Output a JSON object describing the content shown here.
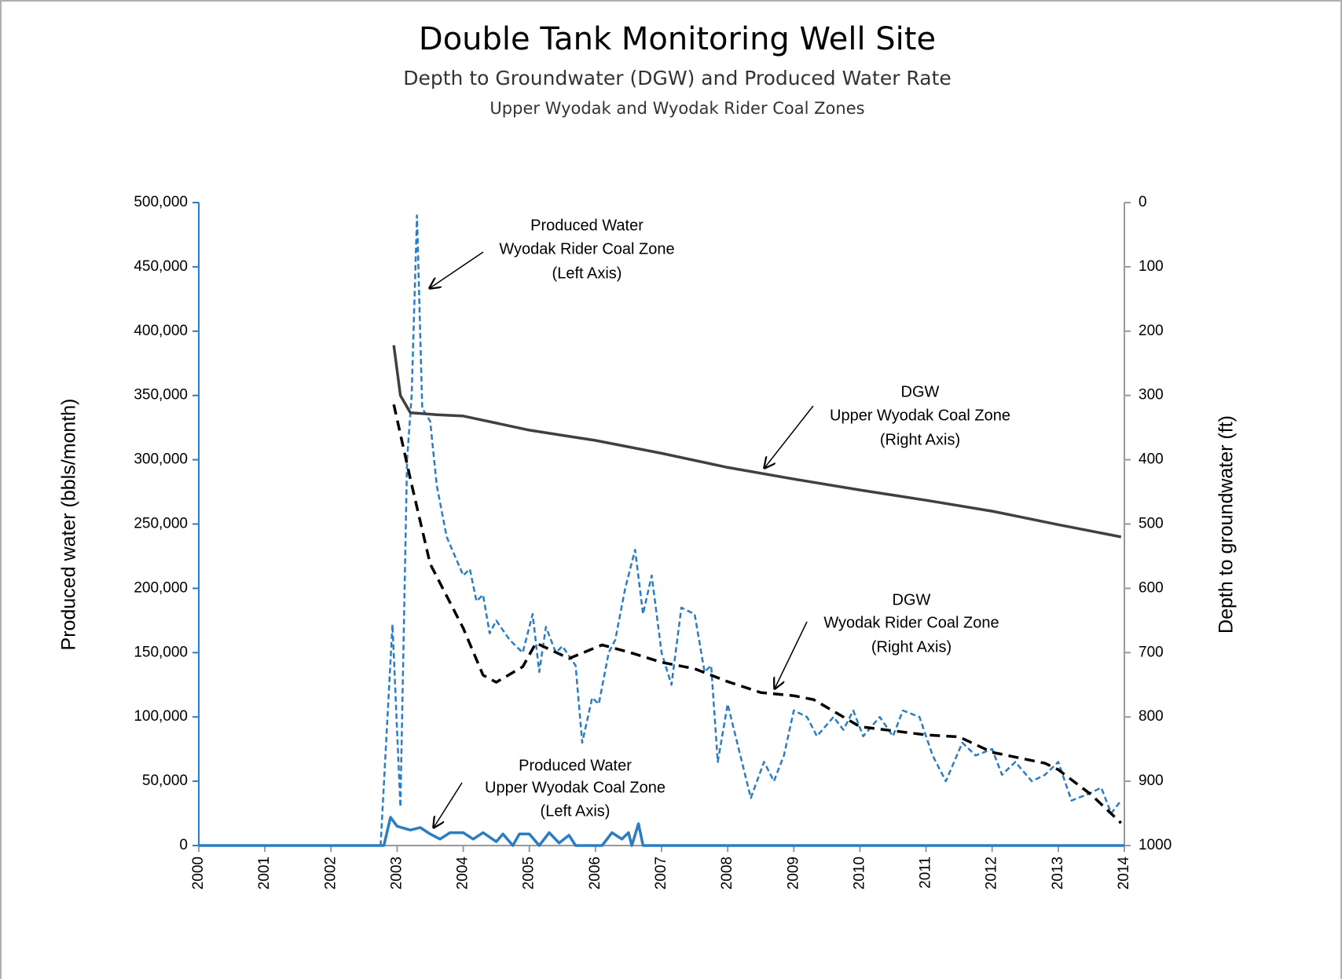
{
  "chart_data": {
    "type": "line",
    "title": "Double Tank Monitoring Well Site",
    "subtitle": [
      "Depth to Groundwater (DGW) and Produced Water Rate",
      "Upper Wyodak and Wyodak Rider Coal Zones"
    ],
    "y_label": "Produced water (bbls/month)",
    "y2_label": "Depth to groundwater (ft)",
    "xlim": [
      2000,
      2014
    ],
    "xticks": [
      2000,
      2001,
      2002,
      2003,
      2004,
      2005,
      2006,
      2007,
      2008,
      2009,
      2010,
      2011,
      2012,
      2013,
      2014
    ],
    "ylim": [
      0,
      500000
    ],
    "yticks": [
      0,
      {
        "value": 50000,
        "label": "50,000"
      },
      {
        "value": 100000,
        "label": "100,000"
      },
      {
        "value": 150000,
        "label": "150,000"
      },
      {
        "value": 200000,
        "label": "200,000"
      },
      {
        "value": 250000,
        "label": "250,000"
      },
      {
        "value": 300000,
        "label": "300,000"
      },
      {
        "value": 350000,
        "label": "350,000"
      },
      {
        "value": 400000,
        "label": "400,000"
      },
      {
        "value": 450000,
        "label": "450,000"
      },
      {
        "value": 500000,
        "label": "500,000"
      }
    ],
    "y2lim": [
      1000,
      0
    ],
    "y2ticks": [
      0,
      100,
      200,
      300,
      400,
      500,
      600,
      700,
      800,
      900,
      1000
    ],
    "series": [
      {
        "label": [
          "Produced Water",
          "Wyodak Rider Coal Zone",
          "(Left Axis)"
        ],
        "color": "#2a7dc4",
        "dash": true,
        "axis": "y",
        "x": [
          2000,
          2002.75,
          2002.93,
          2003.05,
          2003.15,
          2003.22,
          2003.3,
          2003.38,
          2003.5,
          2003.6,
          2003.75,
          2004.0,
          2004.1,
          2004.2,
          2004.3,
          2004.4,
          2004.5,
          2004.7,
          2004.9,
          2005.05,
          2005.15,
          2005.25,
          2005.4,
          2005.5,
          2005.7,
          2005.8,
          2005.95,
          2006.05,
          2006.2,
          2006.3,
          2006.45,
          2006.6,
          2006.72,
          2006.85,
          2007.0,
          2007.15,
          2007.3,
          2007.5,
          2007.65,
          2007.75,
          2007.85,
          2008.0,
          2008.35,
          2008.55,
          2008.7,
          2008.85,
          2009.0,
          2009.2,
          2009.35,
          2009.6,
          2009.75,
          2009.9,
          2010.05,
          2010.3,
          2010.5,
          2010.65,
          2010.9,
          2011.1,
          2011.3,
          2011.55,
          2011.75,
          2012.0,
          2012.15,
          2012.35,
          2012.6,
          2012.8,
          2013.0,
          2013.2,
          2013.45,
          2013.65,
          2013.8,
          2013.95
        ],
        "values": [
          0,
          0,
          172000,
          30000,
          300000,
          350000,
          490000,
          340000,
          330000,
          280000,
          240000,
          210000,
          215000,
          190000,
          195000,
          165000,
          175000,
          160000,
          150000,
          180000,
          135000,
          170000,
          150000,
          155000,
          140000,
          80000,
          115000,
          110000,
          150000,
          160000,
          200000,
          230000,
          180000,
          210000,
          150000,
          125000,
          185000,
          180000,
          135000,
          140000,
          65000,
          110000,
          37000,
          65000,
          50000,
          70000,
          105000,
          100000,
          85000,
          100000,
          90000,
          105000,
          85000,
          100000,
          85000,
          105000,
          100000,
          70000,
          50000,
          80000,
          70000,
          75000,
          55000,
          65000,
          50000,
          55000,
          65000,
          35000,
          40000,
          45000,
          25000,
          35000
        ]
      },
      {
        "label": [
          "Produced Water",
          "Upper Wyodak Coal Zone",
          "(Left Axis)"
        ],
        "color": "#2a7dc4",
        "dash": false,
        "axis": "y",
        "x": [
          2000,
          2002.8,
          2002.9,
          2003.0,
          2003.2,
          2003.35,
          2003.5,
          2003.65,
          2003.8,
          2004.0,
          2004.15,
          2004.3,
          2004.5,
          2004.6,
          2004.75,
          2004.85,
          2005.0,
          2005.15,
          2005.3,
          2005.45,
          2005.6,
          2005.7,
          2006.1,
          2006.25,
          2006.4,
          2006.5,
          2006.55,
          2006.65,
          2006.72,
          2014
        ],
        "values": [
          0,
          0,
          22000,
          15000,
          12000,
          14000,
          9000,
          5000,
          10000,
          10000,
          5000,
          10000,
          3000,
          9000,
          0,
          9000,
          9000,
          0,
          10000,
          2000,
          8000,
          0,
          0,
          10000,
          5000,
          10000,
          0,
          17000,
          0,
          0
        ]
      },
      {
        "label": [
          "DGW",
          "Upper Wyodak Coal Zone",
          "(Right Axis)"
        ],
        "color": "#404040",
        "dash": false,
        "axis": "y2",
        "x": [
          2002.95,
          2003.05,
          2003.2,
          2003.35,
          2003.6,
          2004.0,
          2005.0,
          2005.5,
          2006.0,
          2007.0,
          2008.0,
          2009.0,
          2010.0,
          2011.0,
          2012.0,
          2013.0,
          2013.95
        ],
        "values": [
          222,
          300,
          327,
          328,
          330,
          332,
          354,
          362,
          370,
          390,
          412,
          430,
          447,
          463,
          480,
          501,
          520
        ]
      },
      {
        "label": [
          "DGW",
          "Wyodak Rider Coal Zone",
          "(Right Axis)"
        ],
        "color": "#000000",
        "dash": true,
        "axis": "y2",
        "x": [
          2002.95,
          2003.2,
          2003.5,
          2004.0,
          2004.3,
          2004.5,
          2004.9,
          2005.1,
          2005.6,
          2006.1,
          2006.5,
          2007.0,
          2007.5,
          2008.0,
          2008.5,
          2009.0,
          2009.3,
          2010.0,
          2011.0,
          2011.5,
          2012.0,
          2012.8,
          2013.0,
          2013.5,
          2013.95
        ],
        "values": [
          314,
          430,
          562,
          662,
          735,
          746,
          722,
          685,
          709,
          688,
          699,
          715,
          725,
          745,
          762,
          767,
          773,
          815,
          828,
          831,
          855,
          872,
          882,
          921,
          965
        ]
      }
    ]
  }
}
